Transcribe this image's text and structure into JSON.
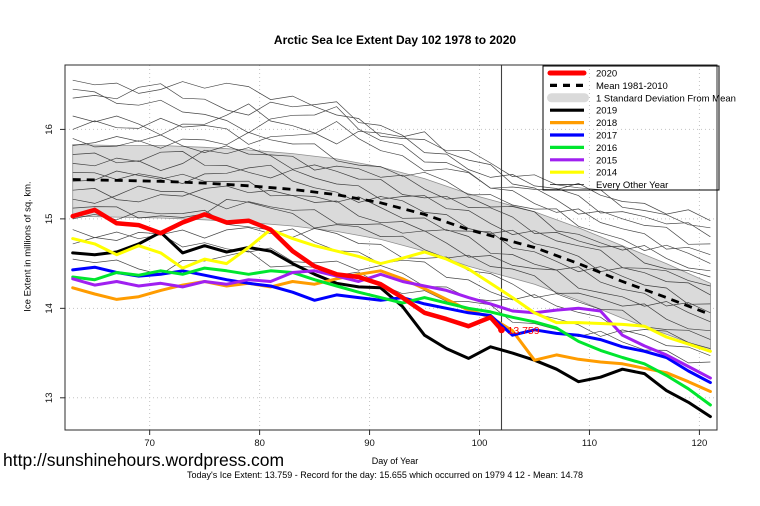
{
  "page": {
    "title": "Arctic Sea Ice Extent Day 102 1978 to 2020",
    "watermark": "http://sunshinehours.wordpress.com",
    "footer": "Today's Ice Extent: 13.759  - Record for the day: 15.655 which occurred on 1979 4 12  - Mean: 14.78"
  },
  "chart_data": {
    "type": "line",
    "title": "Arctic Sea Ice Extent Day 102 1978 to 2020",
    "xlabel": "Day of Year",
    "ylabel": "Ice Extent in millions of sq. km.",
    "xlim": [
      62.3,
      121.6
    ],
    "ylim": [
      12.64,
      16.72
    ],
    "xticks": [
      70,
      80,
      90,
      100,
      110,
      120
    ],
    "yticks": [
      13,
      14,
      15,
      16
    ],
    "grid": true,
    "legend_position": "top-right",
    "vline_day": 102,
    "today_annotation": {
      "text": "13.759",
      "day": 102,
      "value": 13.759,
      "color": "#FF0000"
    },
    "x_days": [
      63,
      65,
      67,
      69,
      71,
      73,
      75,
      77,
      79,
      81,
      83,
      85,
      87,
      89,
      91,
      93,
      95,
      97,
      99,
      101,
      103,
      105,
      107,
      109,
      111,
      113,
      115,
      117,
      119,
      121
    ],
    "series": [
      {
        "name": "2020",
        "color": "#FF0000",
        "width": 4.5,
        "x": [
          63,
          65,
          67,
          69,
          71,
          73,
          75,
          77,
          79,
          81,
          83,
          85,
          87,
          89,
          91,
          93,
          95,
          97,
          99,
          101,
          102
        ],
        "values": [
          15.03,
          15.1,
          14.95,
          14.93,
          14.84,
          14.96,
          15.05,
          14.96,
          14.98,
          14.88,
          14.64,
          14.47,
          14.38,
          14.35,
          14.27,
          14.12,
          13.95,
          13.88,
          13.8,
          13.9,
          13.76
        ]
      },
      {
        "name": "2019",
        "color": "#000000",
        "width": 3,
        "values": [
          14.62,
          14.6,
          14.63,
          14.72,
          14.85,
          14.62,
          14.7,
          14.63,
          14.68,
          14.64,
          14.5,
          14.38,
          14.28,
          14.24,
          14.23,
          14.02,
          13.7,
          13.55,
          13.44,
          13.57,
          13.5,
          13.42,
          13.32,
          13.18,
          13.23,
          13.32,
          13.27,
          13.08,
          12.95,
          12.79
        ]
      },
      {
        "name": "2018",
        "color": "#FF9C00",
        "width": 3,
        "values": [
          14.23,
          14.16,
          14.1,
          14.13,
          14.2,
          14.26,
          14.3,
          14.25,
          14.28,
          14.24,
          14.3,
          14.27,
          14.33,
          14.38,
          14.42,
          14.33,
          14.22,
          14.1,
          13.98,
          13.9,
          13.75,
          13.42,
          13.48,
          13.43,
          13.4,
          13.38,
          13.33,
          13.28,
          13.18,
          13.07
        ]
      },
      {
        "name": "2017",
        "color": "#0000FF",
        "width": 3,
        "values": [
          14.43,
          14.46,
          14.4,
          14.36,
          14.38,
          14.42,
          14.37,
          14.32,
          14.28,
          14.25,
          14.18,
          14.09,
          14.15,
          14.12,
          14.09,
          14.12,
          14.05,
          14.0,
          13.95,
          13.92,
          13.7,
          13.76,
          13.72,
          13.7,
          13.65,
          13.57,
          13.52,
          13.45,
          13.3,
          13.17
        ]
      },
      {
        "name": "2016",
        "color": "#00E62E",
        "width": 3,
        "values": [
          14.35,
          14.32,
          14.4,
          14.37,
          14.42,
          14.38,
          14.45,
          14.42,
          14.38,
          14.42,
          14.4,
          14.32,
          14.25,
          14.18,
          14.12,
          14.06,
          14.12,
          14.06,
          14.0,
          13.96,
          13.9,
          13.85,
          13.78,
          13.63,
          13.53,
          13.45,
          13.38,
          13.25,
          13.1,
          12.92
        ]
      },
      {
        "name": "2015",
        "color": "#A020F0",
        "width": 3,
        "values": [
          14.33,
          14.26,
          14.3,
          14.25,
          14.28,
          14.24,
          14.3,
          14.27,
          14.32,
          14.3,
          14.4,
          14.42,
          14.36,
          14.3,
          14.38,
          14.3,
          14.25,
          14.2,
          14.12,
          14.05,
          13.97,
          13.95,
          13.98,
          14.0,
          13.97,
          13.7,
          13.58,
          13.48,
          13.35,
          13.22
        ]
      },
      {
        "name": "2014",
        "color": "#FFFF00",
        "width": 3,
        "values": [
          14.78,
          14.72,
          14.6,
          14.7,
          14.62,
          14.45,
          14.55,
          14.5,
          14.68,
          14.88,
          14.78,
          14.7,
          14.64,
          14.58,
          14.5,
          14.56,
          14.63,
          14.55,
          14.44,
          14.28,
          14.12,
          13.95,
          13.84,
          13.84,
          13.83,
          13.82,
          13.8,
          13.68,
          13.6,
          13.52
        ]
      }
    ],
    "mean_line": {
      "name": "Mean 1981-2010",
      "color": "#000000",
      "dashed": true,
      "x": [
        63,
        67,
        71,
        75,
        79,
        83,
        87,
        91,
        95,
        99,
        102,
        105,
        109,
        113,
        117,
        121
      ],
      "values": [
        15.44,
        15.43,
        15.42,
        15.4,
        15.37,
        15.33,
        15.27,
        15.18,
        15.05,
        14.88,
        14.78,
        14.68,
        14.5,
        14.3,
        14.12,
        13.93
      ]
    },
    "std_band": {
      "name": "1 Standard Deviation From Mean",
      "color": "#DADADA",
      "x": [
        63,
        67,
        71,
        75,
        79,
        83,
        87,
        91,
        95,
        99,
        102,
        105,
        109,
        113,
        117,
        121
      ],
      "top": [
        15.83,
        15.82,
        15.82,
        15.8,
        15.77,
        15.73,
        15.67,
        15.58,
        15.45,
        15.28,
        15.18,
        15.08,
        14.9,
        14.7,
        14.5,
        14.28
      ],
      "bottom": [
        15.03,
        15.02,
        15.01,
        14.99,
        14.96,
        14.92,
        14.86,
        14.77,
        14.64,
        14.47,
        14.37,
        14.27,
        14.09,
        13.89,
        13.71,
        13.53
      ]
    },
    "background_years": {
      "name": "Every Other Year",
      "color": "#1A1A1A",
      "x": [
        63,
        71,
        79,
        87,
        95,
        103,
        111,
        117,
        121
      ],
      "lines": [
        [
          16.55,
          16.45,
          16.5,
          16.15,
          15.85,
          15.55,
          15.25,
          15.05,
          14.9
        ],
        [
          16.35,
          16.45,
          16.2,
          16.3,
          15.75,
          15.45,
          15.15,
          14.95,
          14.8
        ],
        [
          16.15,
          16.0,
          16.2,
          15.9,
          15.95,
          15.4,
          15.05,
          14.85,
          14.72
        ],
        [
          16.0,
          16.1,
          15.9,
          16.0,
          15.6,
          15.3,
          14.95,
          14.75,
          14.6
        ],
        [
          15.9,
          15.8,
          15.95,
          15.7,
          15.45,
          15.2,
          14.85,
          14.65,
          14.5
        ],
        [
          15.82,
          15.9,
          15.72,
          15.6,
          15.35,
          15.1,
          14.75,
          14.55,
          14.42
        ],
        [
          15.72,
          15.6,
          15.78,
          15.5,
          15.28,
          15.0,
          14.68,
          14.48,
          14.35
        ],
        [
          15.62,
          15.72,
          15.55,
          15.4,
          15.2,
          14.9,
          14.6,
          14.4,
          14.25
        ],
        [
          15.52,
          15.42,
          15.58,
          15.3,
          15.1,
          14.8,
          14.5,
          14.3,
          14.15
        ],
        [
          15.42,
          15.52,
          15.35,
          15.22,
          15.0,
          14.7,
          14.4,
          14.2,
          14.05
        ],
        [
          15.32,
          15.22,
          15.38,
          15.12,
          14.9,
          14.6,
          14.3,
          14.1,
          13.95
        ],
        [
          15.22,
          15.32,
          15.15,
          15.02,
          14.8,
          14.5,
          14.2,
          14.0,
          13.85
        ],
        [
          15.12,
          15.02,
          15.18,
          14.92,
          14.7,
          14.4,
          14.1,
          13.9,
          13.75
        ],
        [
          15.0,
          15.1,
          14.92,
          14.8,
          14.58,
          14.28,
          13.98,
          13.8,
          13.65
        ],
        [
          14.88,
          14.78,
          14.92,
          14.68,
          14.45,
          14.15,
          13.88,
          13.7,
          13.55
        ],
        [
          14.72,
          14.82,
          14.62,
          14.52,
          14.3,
          14.02,
          13.76,
          13.6,
          13.47
        ],
        [
          14.55,
          14.45,
          14.6,
          14.38,
          14.18,
          13.9,
          13.66,
          13.52,
          13.4
        ],
        [
          16.45,
          16.25,
          16.05,
          16.2,
          15.65,
          15.35,
          15.3,
          15.1,
          14.98
        ]
      ]
    },
    "legend": [
      {
        "label": "2020",
        "color": "#FF0000",
        "swatch": "thick-line"
      },
      {
        "label": "Mean 1981-2010",
        "color": "#000000",
        "swatch": "dashed-line"
      },
      {
        "label": "1 Standard Deviation From Mean",
        "color": "#DADADA",
        "swatch": "band"
      },
      {
        "label": "2019",
        "color": "#000000",
        "swatch": "line"
      },
      {
        "label": "2018",
        "color": "#FF9C00",
        "swatch": "line"
      },
      {
        "label": "2017",
        "color": "#0000FF",
        "swatch": "line"
      },
      {
        "label": "2016",
        "color": "#00E62E",
        "swatch": "line"
      },
      {
        "label": "2015",
        "color": "#A020F0",
        "swatch": "line"
      },
      {
        "label": "2014",
        "color": "#FFFF00",
        "swatch": "line"
      },
      {
        "label": "Every Other Year",
        "color": "#1A1A1A",
        "swatch": "thin-line"
      }
    ]
  }
}
